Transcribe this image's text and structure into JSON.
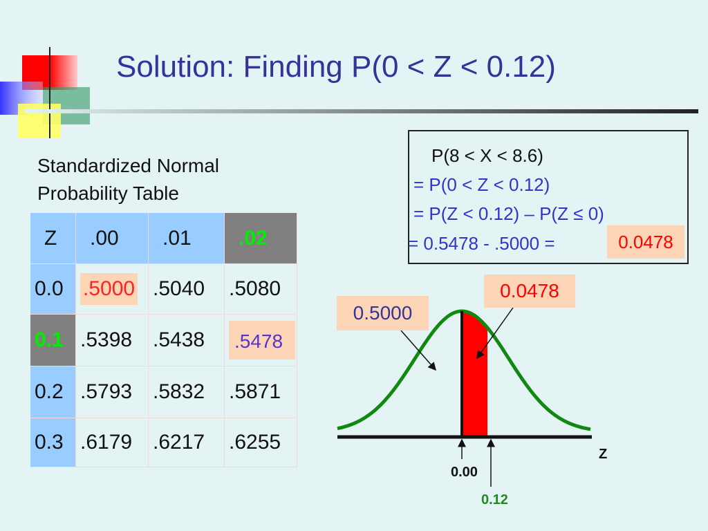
{
  "title": "Solution: Finding P(0 < Z < 0.12)",
  "table_caption": [
    "Standardized Normal",
    "Probability Table"
  ],
  "table": {
    "header": [
      "Z",
      ".00",
      ".01",
      ".02"
    ],
    "rows": [
      [
        "0.0",
        ".5000",
        ".5040",
        ".5080"
      ],
      [
        "0.1",
        ".5398",
        ".5438",
        ".5478"
      ],
      [
        "0.2",
        ".5793",
        ".5832",
        ".5871"
      ],
      [
        "0.3",
        ".6179",
        ".6217",
        ".6255"
      ]
    ]
  },
  "box": {
    "lines": [
      "P(8 < X < 8.6)",
      "= P(0 < Z < 0.12)",
      "= P(Z < 0.12) – P(Z ≤ 0)",
      "= 0.5478 - .5000 ="
    ],
    "result": "0.0478"
  },
  "graph": {
    "left_label": "0.5000",
    "area_label": "0.0478",
    "axis_label": "Z",
    "tick_zero": "0.00",
    "tick_value": "0.12"
  }
}
